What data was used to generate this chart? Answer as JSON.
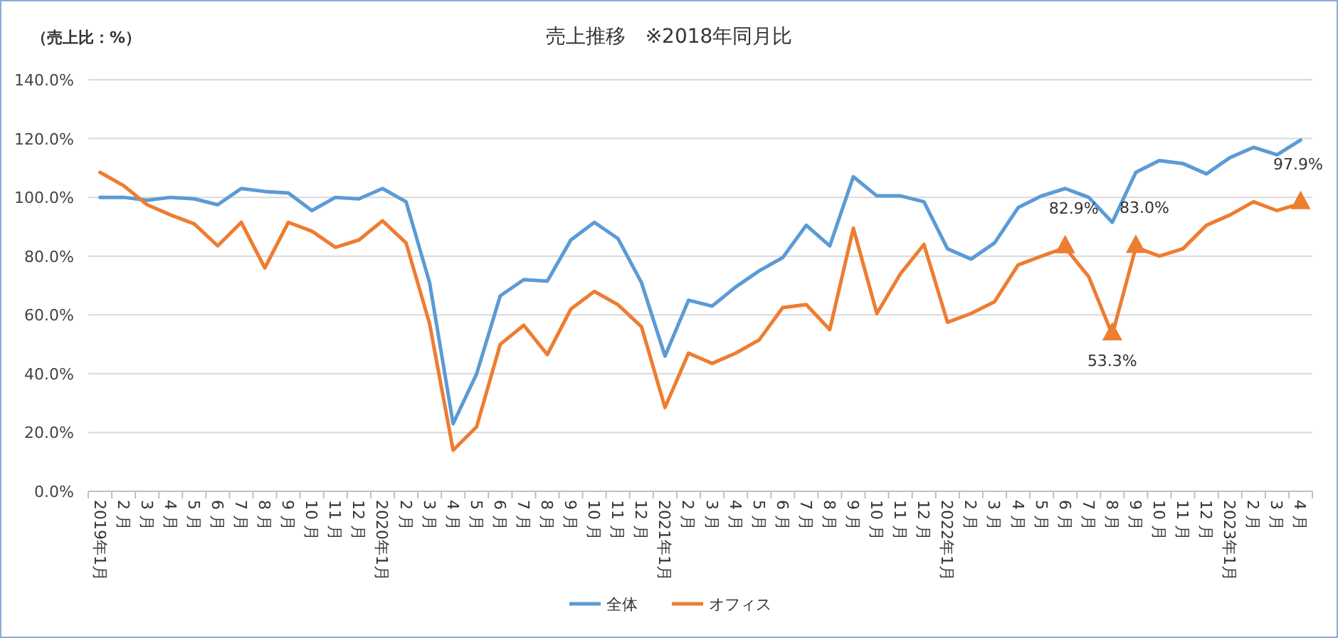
{
  "chart_data": {
    "type": "line",
    "title": "売上推移　※2018年同月比",
    "ylabel": "（売上比：%）",
    "categories": [
      "2019年1月",
      "2 月",
      "3 月",
      "4 月",
      "5 月",
      "6 月",
      "7 月",
      "8 月",
      "9 月",
      "10 月",
      "11 月",
      "12 月",
      "2020年1月",
      "2 月",
      "3 月",
      "4 月",
      "5 月",
      "6 月",
      "7 月",
      "8 月",
      "9 月",
      "10 月",
      "11 月",
      "12 月",
      "2021年1月",
      "2 月",
      "3 月",
      "4 月",
      "5 月",
      "6 月",
      "7 月",
      "8 月",
      "9 月",
      "10 月",
      "11 月",
      "12 月",
      "2022年1月",
      "2 月",
      "3 月",
      "4 月",
      "5 月",
      "6 月",
      "7 月",
      "8 月",
      "9 月",
      "10 月",
      "11 月",
      "12 月",
      "2023年1月",
      "2 月",
      "3 月",
      "4 月"
    ],
    "series": [
      {
        "name": "全体",
        "color": "#5b9bd5",
        "values": [
          100,
          100,
          99,
          100,
          99.5,
          97.5,
          103,
          102,
          101.5,
          95.5,
          100,
          99.5,
          103,
          98.5,
          71,
          23,
          40,
          66.5,
          72,
          71.5,
          85.5,
          91.5,
          86,
          71,
          46,
          65,
          63,
          69.5,
          75,
          79.5,
          90.5,
          83.5,
          107,
          100.5,
          100.5,
          98.5,
          82.5,
          79,
          84.5,
          96.5,
          100.5,
          103,
          100,
          91.5,
          108.5,
          112.5,
          111.5,
          108,
          113.5,
          117,
          114.5,
          119.5
        ]
      },
      {
        "name": "オフィス",
        "color": "#ed7d31",
        "values": [
          108.5,
          104,
          97.5,
          94,
          91,
          83.5,
          91.5,
          76,
          91.5,
          88.5,
          83,
          85.5,
          92,
          84.5,
          57,
          14,
          22,
          50,
          56.5,
          46.5,
          62,
          68,
          63.5,
          56,
          28.5,
          47,
          43.5,
          47,
          51.5,
          62.5,
          63.5,
          55,
          89.5,
          60.5,
          74,
          84,
          57.5,
          60.5,
          64.5,
          77,
          80,
          82.9,
          73,
          53.3,
          83.0,
          80,
          82.5,
          90.5,
          94,
          98.5,
          95.5,
          97.9
        ]
      },
      {
        "type": "scatter",
        "color": "#ed7d31",
        "marker": "triangle",
        "values": [
          null,
          null,
          null,
          null,
          null,
          null,
          null,
          null,
          null,
          null,
          null,
          null,
          null,
          null,
          null,
          null,
          null,
          null,
          null,
          null,
          null,
          null,
          null,
          null,
          null,
          null,
          null,
          null,
          null,
          null,
          null,
          null,
          null,
          null,
          null,
          null,
          null,
          null,
          null,
          null,
          null,
          82.9,
          null,
          53.3,
          83.0,
          null,
          null,
          null,
          null,
          null,
          null,
          97.9
        ],
        "value_labels": [
          null,
          null,
          null,
          null,
          null,
          null,
          null,
          null,
          null,
          null,
          null,
          null,
          null,
          null,
          null,
          null,
          null,
          null,
          null,
          null,
          null,
          null,
          null,
          null,
          null,
          null,
          null,
          null,
          null,
          null,
          null,
          null,
          null,
          null,
          null,
          null,
          null,
          null,
          null,
          null,
          null,
          "82.9%",
          null,
          "53.3%",
          "83.0%",
          null,
          null,
          null,
          null,
          null,
          null,
          "97.9%"
        ]
      }
    ],
    "ylim": [
      0,
      140
    ],
    "yticks": [
      {
        "value": 0,
        "label": "0.0%"
      },
      {
        "value": 20,
        "label": "20.0%"
      },
      {
        "value": 40,
        "label": "40.0%"
      },
      {
        "value": 60,
        "label": "60.0%"
      },
      {
        "value": 80,
        "label": "80.0%"
      },
      {
        "value": 100,
        "label": "100.0%"
      },
      {
        "value": 120,
        "label": "120.0%"
      },
      {
        "value": 140,
        "label": "140.0%"
      }
    ],
    "grid": "y",
    "legend": "bottom",
    "line_style": "solid"
  }
}
